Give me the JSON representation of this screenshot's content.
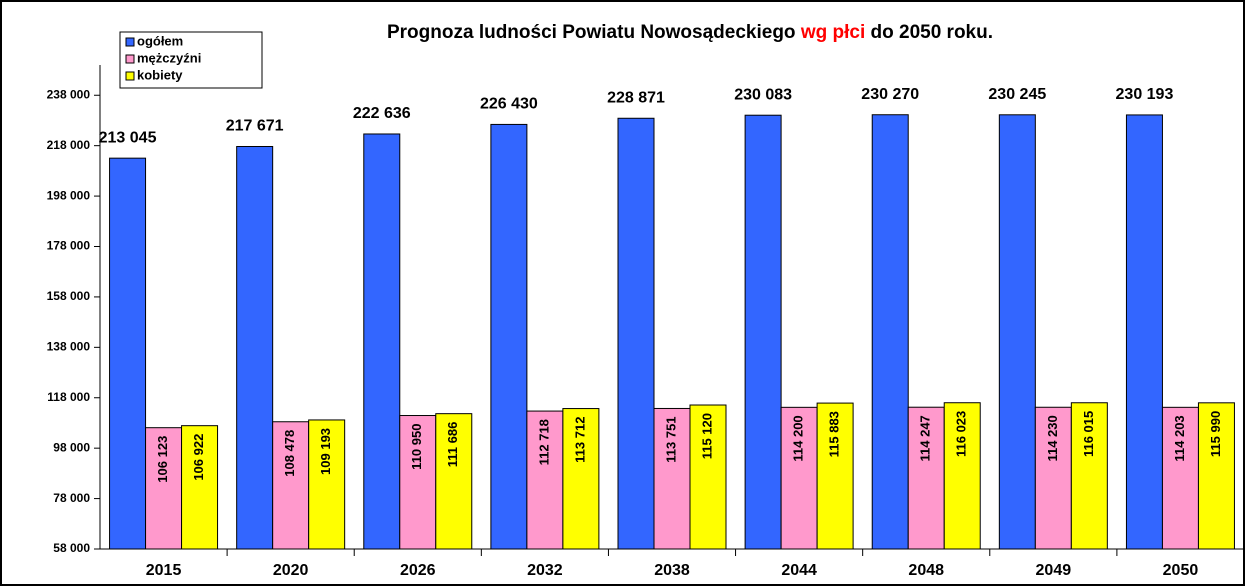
{
  "chart_data": {
    "type": "bar",
    "title": [
      "Prognoza ludności Powiatu Nowosądeckiego ",
      "wg płci",
      " do 2050 roku."
    ],
    "categories": [
      "2015",
      "2020",
      "2026",
      "2032",
      "2038",
      "2044",
      "2048",
      "2049",
      "2050"
    ],
    "series": [
      {
        "name": "ogółem",
        "color": "#3366ff",
        "values": [
          213045,
          217671,
          222636,
          226430,
          228871,
          230083,
          230270,
          230245,
          230193
        ],
        "value_labels": [
          "213 045",
          "217 671",
          "222 636",
          "226 430",
          "228 871",
          "230 083",
          "230 270",
          "230 245",
          "230 193"
        ]
      },
      {
        "name": "mężczyźni",
        "color": "#ff99cc",
        "values": [
          106123,
          108478,
          110950,
          112718,
          113751,
          114200,
          114247,
          114230,
          114203
        ],
        "value_labels": [
          "106 123",
          "108 478",
          "110 950",
          "112 718",
          "113 751",
          "114 200",
          "114 247",
          "114 230",
          "114 203"
        ]
      },
      {
        "name": "kobiety",
        "color": "#ffff00",
        "values": [
          106922,
          109193,
          111686,
          113712,
          115120,
          115883,
          116023,
          116015,
          115990
        ],
        "value_labels": [
          "106 922",
          "109 193",
          "111 686",
          "113 712",
          "115 120",
          "115 883",
          "116 023",
          "116 015",
          "115 990"
        ]
      }
    ],
    "ylim": [
      58000,
      250000
    ],
    "yticks": [
      {
        "value": 58000,
        "label": "58 000"
      },
      {
        "value": 78000,
        "label": "78 000"
      },
      {
        "value": 98000,
        "label": "98 000"
      },
      {
        "value": 118000,
        "label": "118 000"
      },
      {
        "value": 138000,
        "label": "138 000"
      },
      {
        "value": 158000,
        "label": "158 000"
      },
      {
        "value": 178000,
        "label": "178 000"
      },
      {
        "value": 198000,
        "label": "198 000"
      },
      {
        "value": 218000,
        "label": "218 000"
      },
      {
        "value": 238000,
        "label": "238 000"
      }
    ],
    "legend": "top-left"
  }
}
